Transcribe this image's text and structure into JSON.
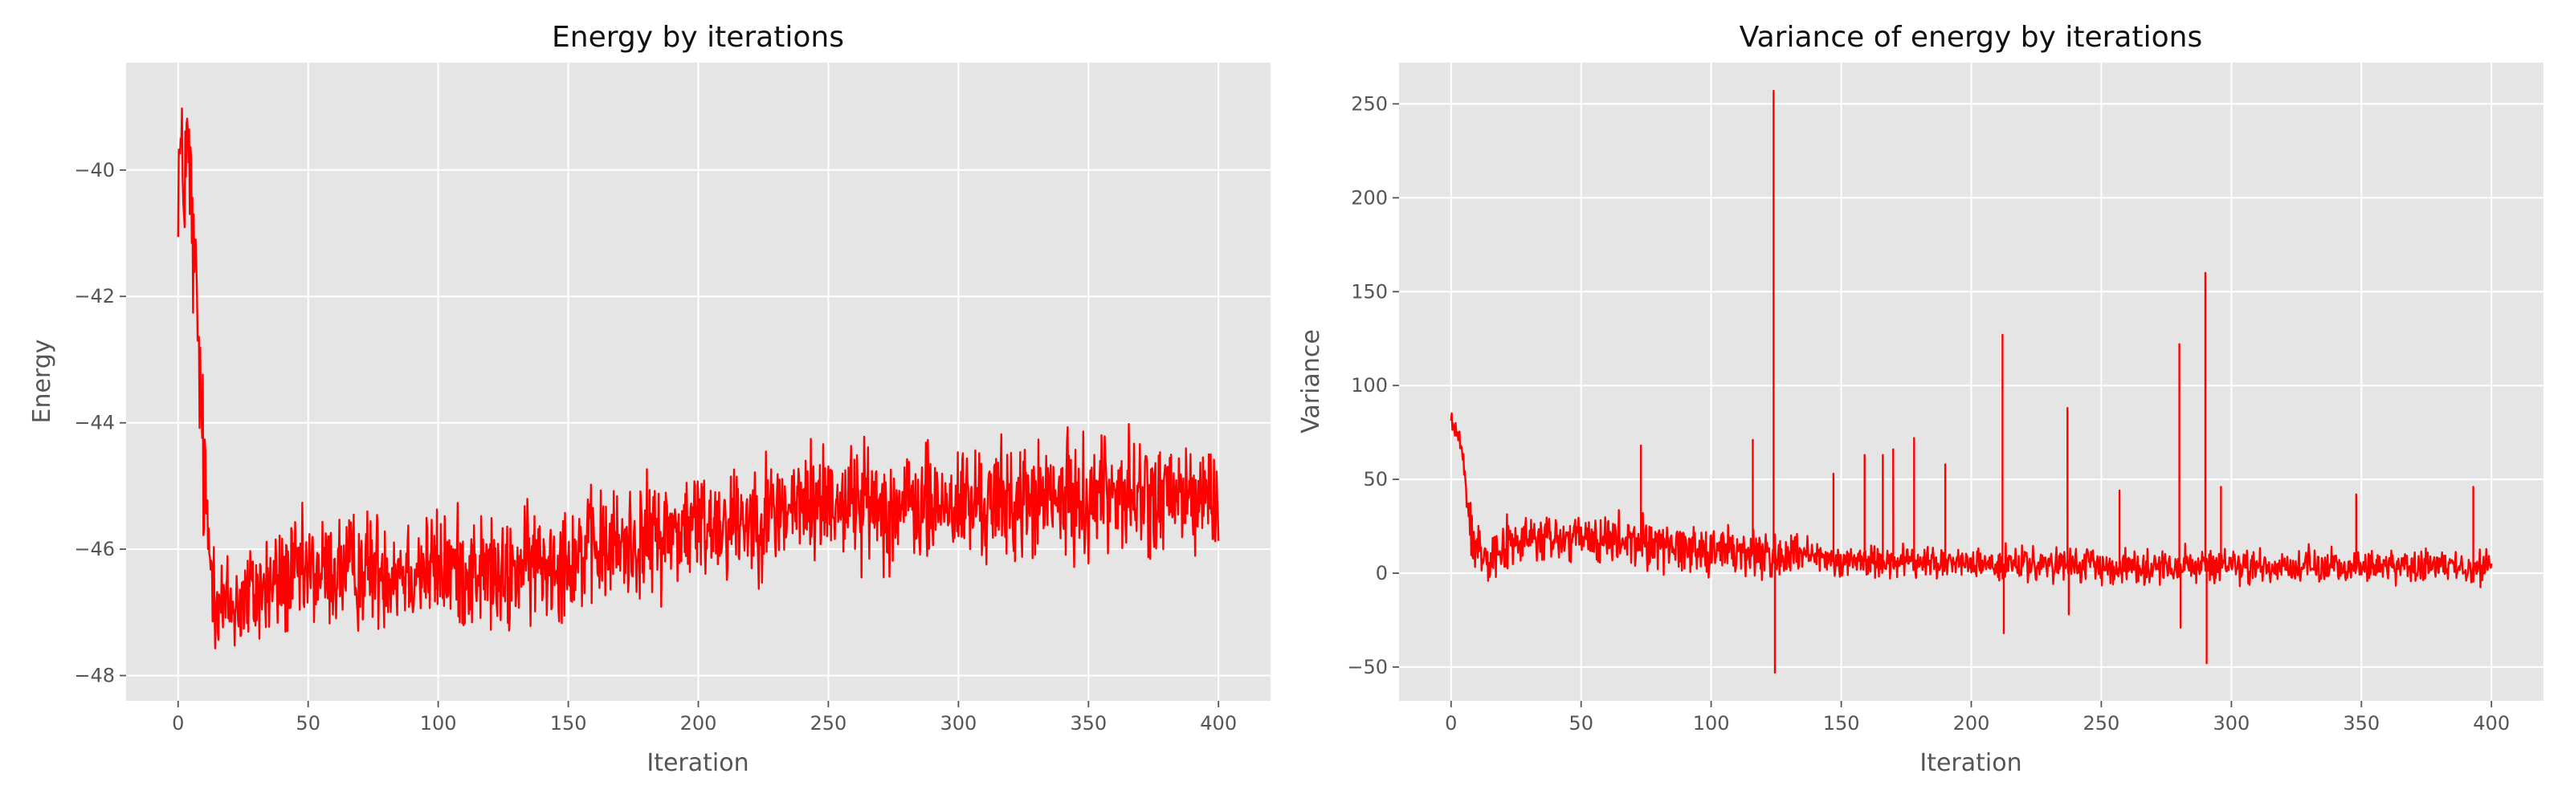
{
  "chart_data": [
    {
      "type": "line",
      "title": "Energy by iterations",
      "xlabel": "Iteration",
      "ylabel": "Energy",
      "xlim": [
        -20,
        420
      ],
      "ylim": [
        -48.4,
        -38.3
      ],
      "xticks": [
        0,
        50,
        100,
        150,
        200,
        250,
        300,
        350,
        400
      ],
      "yticks": [
        -48,
        -46,
        -44,
        -42,
        -40
      ],
      "xtick_labels": [
        "0",
        "50",
        "100",
        "150",
        "200",
        "250",
        "300",
        "350",
        "400"
      ],
      "ytick_labels": [
        "−48",
        "−46",
        "−44",
        "−42",
        "−40"
      ],
      "grid": true,
      "line_color": "#ff0000",
      "noise_amplitude": 0.45,
      "series": [
        {
          "x": [
            0,
            1,
            2,
            3,
            4,
            5,
            6,
            7,
            8,
            9,
            10,
            11,
            12,
            13,
            14,
            15,
            16,
            17,
            18,
            20,
            25,
            30,
            40,
            50,
            60,
            75,
            100,
            120,
            125,
            130,
            150,
            175,
            200,
            225,
            240,
            250,
            265,
            275,
            300,
            325,
            350,
            358,
            362,
            370,
            400
          ],
          "y": [
            -39.9,
            -39.8,
            -40.4,
            -39.6,
            -39.9,
            -40.5,
            -41.5,
            -42.0,
            -43.0,
            -44.0,
            -45.0,
            -45.6,
            -46.0,
            -46.3,
            -46.5,
            -46.7,
            -46.8,
            -46.9,
            -46.95,
            -46.9,
            -46.8,
            -46.7,
            -46.5,
            -46.4,
            -46.35,
            -46.3,
            -46.3,
            -46.35,
            -46.6,
            -46.3,
            -46.1,
            -45.9,
            -45.6,
            -45.45,
            -45.3,
            -45.2,
            -45.25,
            -45.35,
            -45.3,
            -45.25,
            -45.2,
            -45.0,
            -45.1,
            -45.2,
            -45.2
          ]
        }
      ]
    },
    {
      "type": "line",
      "title": "Variance of energy by iterations",
      "xlabel": "Iteration",
      "ylabel": "Variance",
      "xlim": [
        -20,
        420
      ],
      "ylim": [
        -68,
        272
      ],
      "xticks": [
        0,
        50,
        100,
        150,
        200,
        250,
        300,
        350,
        400
      ],
      "yticks": [
        -50,
        0,
        50,
        100,
        150,
        200,
        250
      ],
      "xtick_labels": [
        "0",
        "50",
        "100",
        "150",
        "200",
        "250",
        "300",
        "350",
        "400"
      ],
      "ytick_labels": [
        "−50",
        "0",
        "50",
        "100",
        "150",
        "200",
        "250"
      ],
      "grid": true,
      "line_color": "#ff0000",
      "noise_amplitude": 6,
      "series": [
        {
          "x": [
            0,
            1,
            2,
            3,
            4,
            5,
            6,
            7,
            8,
            10,
            12,
            15,
            20,
            30,
            50,
            75,
            100,
            125,
            150,
            175,
            200,
            225,
            250,
            300,
            350,
            400
          ],
          "y": [
            82,
            78,
            76,
            72,
            66,
            55,
            40,
            28,
            20,
            15,
            12,
            11,
            14,
            18,
            18,
            16,
            13,
            9,
            7,
            6,
            5,
            4,
            4,
            3.5,
            3.5,
            4
          ]
        }
      ],
      "spikes": [
        {
          "x": 73,
          "y": 68
        },
        {
          "x": 116,
          "y": 71
        },
        {
          "x": 124,
          "y": 257
        },
        {
          "x": 124.5,
          "y": -53
        },
        {
          "x": 147,
          "y": 53
        },
        {
          "x": 159,
          "y": 63
        },
        {
          "x": 166,
          "y": 63
        },
        {
          "x": 170,
          "y": 66
        },
        {
          "x": 178,
          "y": 72
        },
        {
          "x": 190,
          "y": 58
        },
        {
          "x": 212,
          "y": 127
        },
        {
          "x": 212.5,
          "y": -32
        },
        {
          "x": 237,
          "y": 88
        },
        {
          "x": 237.5,
          "y": -22
        },
        {
          "x": 257,
          "y": 44
        },
        {
          "x": 280,
          "y": 122
        },
        {
          "x": 280.5,
          "y": -29
        },
        {
          "x": 290,
          "y": 160
        },
        {
          "x": 290.5,
          "y": -48
        },
        {
          "x": 296,
          "y": 46
        },
        {
          "x": 348,
          "y": 42
        },
        {
          "x": 393,
          "y": 46
        }
      ]
    }
  ]
}
